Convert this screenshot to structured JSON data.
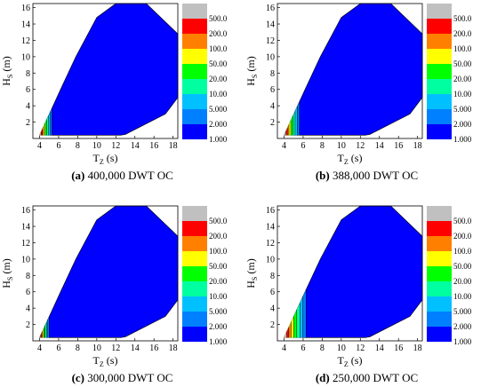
{
  "chart_data": {
    "type": "contour",
    "subplots": [
      {
        "letter": "(a)",
        "caption": "400,000 DWT OC",
        "low_band_extent_tz": 5.3
      },
      {
        "letter": "(b)",
        "caption": "388,000 DWT OC",
        "low_band_extent_tz": 5.6
      },
      {
        "letter": "(c)",
        "caption": "300,000 DWT OC",
        "low_band_extent_tz": 5.0
      },
      {
        "letter": "(d)",
        "caption": "250,000 DWT OC",
        "low_band_extent_tz": 6.3
      }
    ],
    "xlabel_main": "T",
    "xlabel_sub": "Z",
    "xlabel_unit": " (s)",
    "ylabel_main": "H",
    "ylabel_sub": "S",
    "ylabel_unit": " (m)",
    "xlim": [
      3.3,
      18.5
    ],
    "ylim": [
      0,
      16.5
    ],
    "xticks": [
      4,
      6,
      8,
      10,
      12,
      14,
      16,
      18
    ],
    "yticks": [
      2,
      4,
      6,
      8,
      10,
      12,
      14,
      16
    ],
    "legend": {
      "labels": [
        "500.0",
        "200.0",
        "100.0",
        "50.00",
        "20.00",
        "10.00",
        "5.000",
        "2.000",
        "1.000"
      ],
      "colors": [
        "#c0c0c0",
        "#ff0000",
        "#ff8000",
        "#ffff00",
        "#00ff00",
        "#00ffa0",
        "#00c0ff",
        "#0080ff",
        "#0000ff"
      ]
    },
    "domain_boundary": [
      [
        4.0,
        0.4
      ],
      [
        6.2,
        6.0
      ],
      [
        7.8,
        10.0
      ],
      [
        10.0,
        14.8
      ],
      [
        12.0,
        16.5
      ],
      [
        15.2,
        16.5
      ],
      [
        18.5,
        12.8
      ],
      [
        18.5,
        5.0
      ],
      [
        17.2,
        3.0
      ],
      [
        13.0,
        0.5
      ],
      [
        12.5,
        0.4
      ]
    ]
  }
}
